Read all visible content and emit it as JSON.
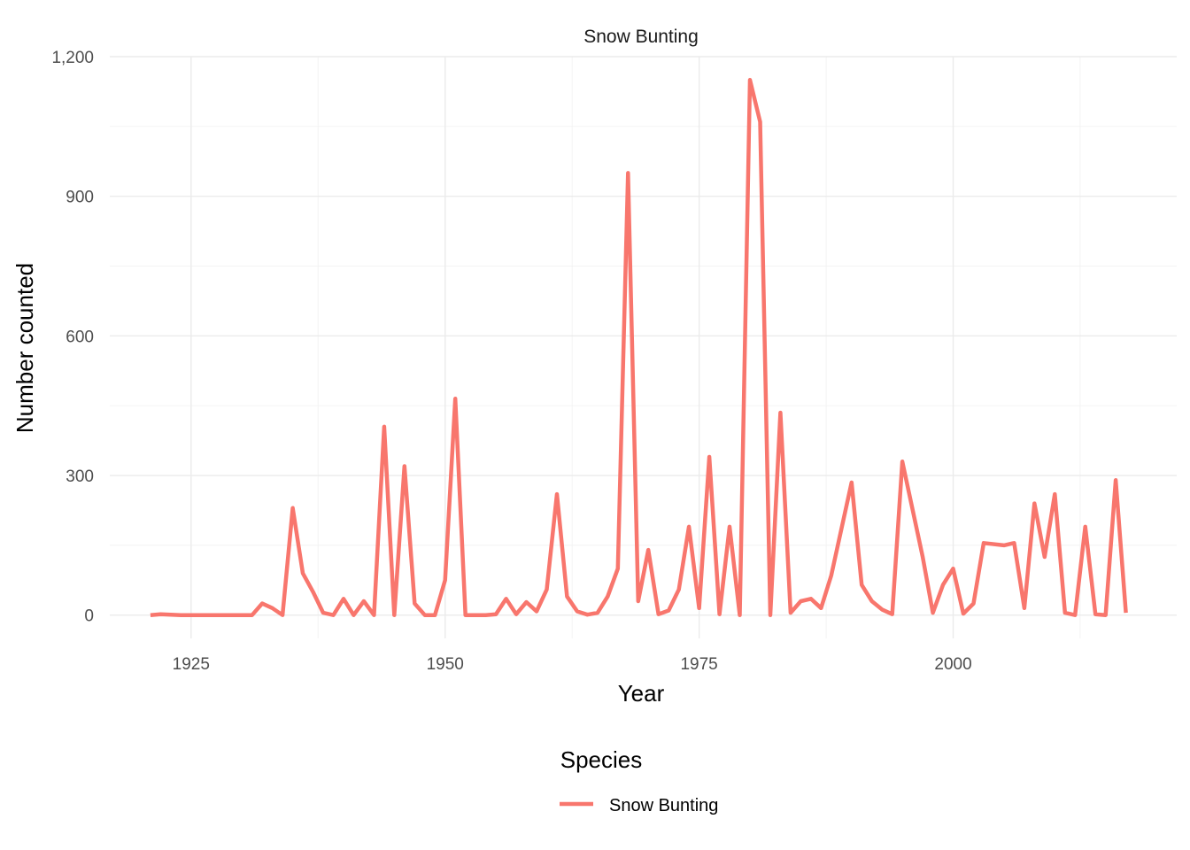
{
  "chart_data": {
    "type": "line",
    "title": "Snow Bunting",
    "xlabel": "Year",
    "ylabel": "Number counted",
    "xlim": [
      1917,
      2022
    ],
    "ylim": [
      -50,
      1200
    ],
    "x_ticks": [
      1925,
      1950,
      1975,
      2000
    ],
    "x_tick_labels": [
      "1925",
      "1950",
      "1975",
      "2000"
    ],
    "x_minor_ticks": [
      1937.5,
      1962.5,
      1987.5,
      2012.5
    ],
    "y_ticks": [
      0,
      300,
      600,
      900,
      1200
    ],
    "y_tick_labels": [
      "0",
      "300",
      "600",
      "900",
      "1,200"
    ],
    "y_minor_ticks": [
      150,
      450,
      750,
      1050
    ],
    "grid": true,
    "legend": {
      "title": "Species",
      "position": "bottom",
      "entries": [
        "Snow Bunting"
      ]
    },
    "series": [
      {
        "name": "Snow Bunting",
        "color": "#F8766D",
        "x": [
          1921,
          1922,
          1923,
          1924,
          1925,
          1926,
          1927,
          1928,
          1929,
          1930,
          1931,
          1932,
          1933,
          1934,
          1935,
          1936,
          1937,
          1938,
          1939,
          1940,
          1941,
          1942,
          1943,
          1944,
          1945,
          1946,
          1947,
          1948,
          1949,
          1950,
          1951,
          1952,
          1953,
          1954,
          1955,
          1956,
          1957,
          1958,
          1959,
          1960,
          1961,
          1962,
          1963,
          1964,
          1965,
          1966,
          1967,
          1968,
          1969,
          1970,
          1971,
          1972,
          1973,
          1974,
          1975,
          1976,
          1977,
          1978,
          1979,
          1980,
          1981,
          1982,
          1983,
          1984,
          1985,
          1986,
          1987,
          1988,
          1990,
          1991,
          1992,
          1993,
          1994,
          1995,
          1997,
          1998,
          1999,
          2000,
          2001,
          2002,
          2003,
          2005,
          2006,
          2007,
          2008,
          2009,
          2010,
          2011,
          2012,
          2013,
          2014,
          2015,
          2016,
          2017
        ],
        "y": [
          0,
          2,
          1,
          0,
          0,
          0,
          0,
          0,
          0,
          0,
          0,
          25,
          15,
          0,
          230,
          90,
          50,
          5,
          0,
          35,
          0,
          30,
          0,
          405,
          0,
          320,
          25,
          0,
          0,
          75,
          465,
          0,
          0,
          0,
          2,
          35,
          2,
          28,
          8,
          55,
          260,
          40,
          8,
          1,
          5,
          40,
          100,
          950,
          30,
          140,
          2,
          10,
          55,
          190,
          15,
          340,
          2,
          190,
          0,
          1150,
          1060,
          0,
          435,
          5,
          30,
          35,
          15,
          85,
          285,
          65,
          30,
          12,
          2,
          330,
          125,
          5,
          65,
          100,
          3,
          25,
          155,
          150,
          155,
          15,
          240,
          125,
          260,
          5,
          0,
          190,
          2,
          0,
          290,
          5
        ]
      }
    ]
  }
}
